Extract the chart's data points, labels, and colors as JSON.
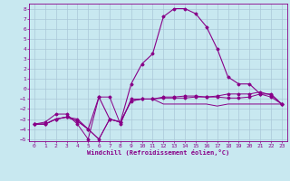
{
  "x_ticks": [
    0,
    1,
    2,
    3,
    4,
    5,
    6,
    7,
    8,
    9,
    10,
    11,
    12,
    13,
    14,
    15,
    16,
    17,
    18,
    19,
    20,
    21,
    22,
    23
  ],
  "ylim": [
    -5.2,
    8.5
  ],
  "yticks": [
    -5,
    -4,
    -3,
    -2,
    -1,
    0,
    1,
    2,
    3,
    4,
    5,
    6,
    7,
    8
  ],
  "xlabel": "Windchill (Refroidissement éolien,°C)",
  "bg_color": "#c8e8f0",
  "line_color": "#880088",
  "grid_color": "#aac8d8",
  "line1_x": [
    0,
    1,
    2,
    3,
    4,
    5,
    6,
    7,
    8,
    9,
    10,
    11,
    12,
    13,
    14,
    15,
    16,
    17,
    18,
    19,
    20,
    21,
    22,
    23
  ],
  "line1_y": [
    -3.5,
    -3.5,
    -3.0,
    -2.8,
    -3.2,
    -4.0,
    -5.0,
    -3.0,
    -3.3,
    -1.2,
    -1.0,
    -1.0,
    -0.9,
    -0.9,
    -0.9,
    -0.8,
    -0.8,
    -0.8,
    -0.9,
    -0.9,
    -0.8,
    -0.5,
    -0.8,
    -1.5
  ],
  "line2_x": [
    0,
    1,
    2,
    3,
    4,
    5,
    6,
    7,
    8,
    9,
    10,
    11,
    12,
    13,
    14,
    15,
    16,
    17,
    18,
    19,
    20,
    21,
    22,
    23
  ],
  "line2_y": [
    -3.5,
    -3.5,
    -3.0,
    -2.8,
    -3.2,
    -4.0,
    -5.0,
    -3.0,
    -3.3,
    -1.2,
    -1.0,
    -1.0,
    -1.5,
    -1.5,
    -1.5,
    -1.5,
    -1.5,
    -1.7,
    -1.5,
    -1.5,
    -1.5,
    -1.5,
    -1.5,
    -1.5
  ],
  "line3_x": [
    0,
    1,
    2,
    3,
    4,
    5,
    6,
    7,
    8,
    9,
    10,
    11,
    12,
    13,
    14,
    15,
    16,
    17,
    18,
    19,
    20,
    21,
    22,
    23
  ],
  "line3_y": [
    -3.5,
    -3.3,
    -2.5,
    -2.5,
    -3.5,
    -5.0,
    -0.8,
    -0.8,
    -3.5,
    -1.0,
    -1.0,
    -1.0,
    -0.8,
    -0.8,
    -0.7,
    -0.7,
    -0.8,
    -0.7,
    -0.5,
    -0.5,
    -0.5,
    -0.3,
    -0.6,
    -1.5
  ],
  "line4_x": [
    0,
    1,
    2,
    3,
    4,
    5,
    6,
    7,
    8,
    9,
    10,
    11,
    12,
    13,
    14,
    15,
    16,
    17,
    18,
    19,
    20,
    21,
    22,
    23
  ],
  "line4_y": [
    -3.5,
    -3.5,
    -3.0,
    -2.8,
    -3.0,
    -4.0,
    -0.8,
    -3.0,
    -3.3,
    0.5,
    2.5,
    3.5,
    7.2,
    8.0,
    8.0,
    7.5,
    6.2,
    4.0,
    1.2,
    0.5,
    0.5,
    -0.5,
    -0.5,
    -1.5
  ]
}
